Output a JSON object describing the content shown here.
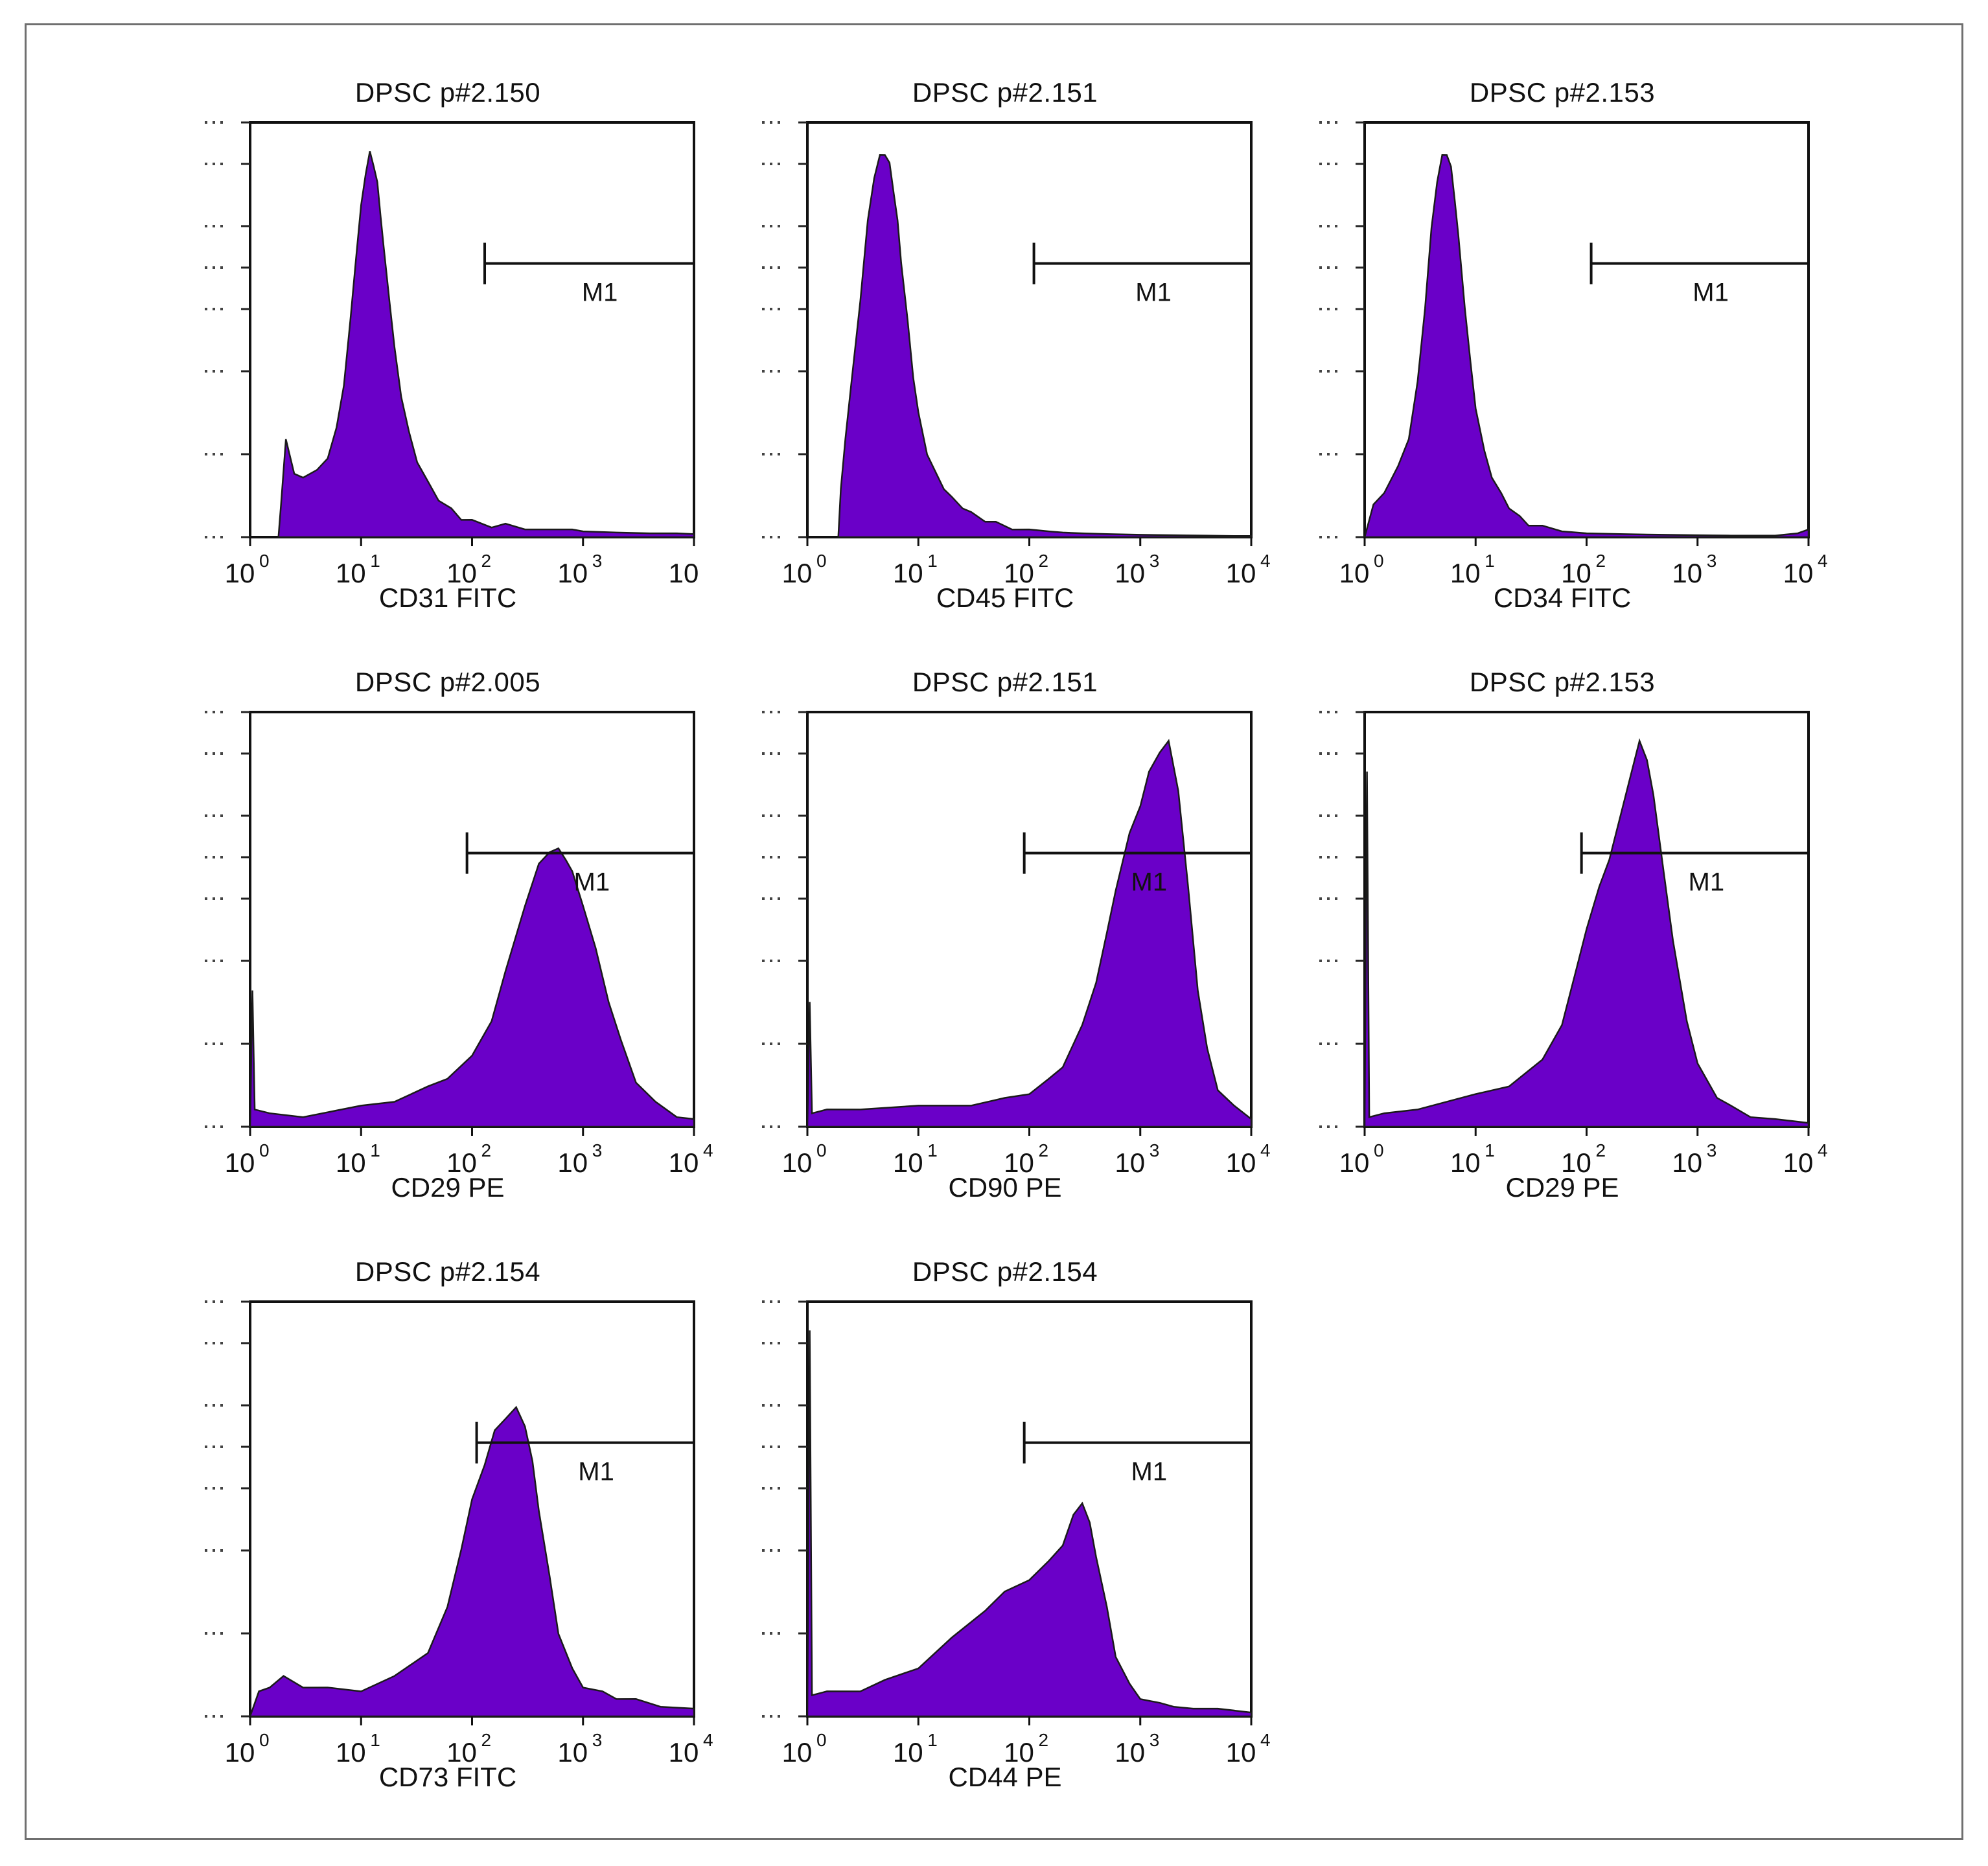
{
  "figure": {
    "fill_color": "#6a00c8",
    "line_color": "#1a1a1a"
  },
  "chart_data": [
    {
      "type": "area",
      "title": "DPSC p#2.150",
      "xlabel": "CD31 FITC",
      "x_scale": "log",
      "xlim": [
        1,
        10000
      ],
      "x_ticks": [
        "10",
        "10",
        "10",
        "10",
        "10"
      ],
      "x_tick_exponents": [
        "0",
        "1",
        "2",
        "3",
        ""
      ],
      "gate": {
        "label": "M1",
        "start": 130,
        "end": 10000
      },
      "y_relative_max": 1.0,
      "series": [
        {
          "x": [
            1.8,
            1.9,
            2.1,
            2.5,
            3,
            4,
            5,
            6,
            7,
            8,
            9,
            10,
            11,
            12,
            13,
            14,
            15,
            16,
            18,
            20,
            23,
            27,
            32,
            40,
            50,
            65,
            80,
            100,
            150,
            200,
            300,
            500,
            800,
            1000,
            2000,
            4000,
            7000,
            10000
          ],
          "y": [
            0.0,
            0.08,
            0.26,
            0.16,
            0.16,
            0.17,
            0.21,
            0.28,
            0.4,
            0.56,
            0.73,
            0.86,
            0.95,
            1.0,
            0.97,
            0.92,
            0.84,
            0.75,
            0.62,
            0.49,
            0.37,
            0.27,
            0.2,
            0.14,
            0.1,
            0.07,
            0.05,
            0.04,
            0.03,
            0.03,
            0.02,
            0.02,
            0.02,
            0.015,
            0.012,
            0.01,
            0.01,
            0.008
          ]
        }
      ]
    },
    {
      "type": "area",
      "title": "DPSC p#2.151",
      "xlabel": "CD45 FITC",
      "x_scale": "log",
      "xlim": [
        1,
        10000
      ],
      "x_ticks": [
        "10",
        "10",
        "10",
        "10",
        "10"
      ],
      "x_tick_exponents": [
        "0",
        "1",
        "2",
        "3",
        "4"
      ],
      "gate": {
        "label": "M1",
        "start": 110,
        "end": 10000
      },
      "y_relative_max": 1.0,
      "series": [
        {
          "x": [
            1.9,
            2.0,
            2.2,
            2.5,
            3,
            3.5,
            4,
            4.5,
            5,
            5.5,
            6,
            6.5,
            7,
            8,
            9,
            10,
            12,
            14,
            17,
            20,
            25,
            30,
            40,
            50,
            70,
            100,
            150,
            200,
            300,
            500,
            1000,
            2000,
            4000,
            7000,
            10000
          ],
          "y": [
            0.0,
            0.12,
            0.26,
            0.4,
            0.62,
            0.82,
            0.94,
            0.99,
            1.0,
            0.97,
            0.9,
            0.82,
            0.72,
            0.56,
            0.42,
            0.32,
            0.22,
            0.17,
            0.13,
            0.1,
            0.08,
            0.06,
            0.045,
            0.035,
            0.025,
            0.02,
            0.015,
            0.012,
            0.01,
            0.008,
            0.006,
            0.005,
            0.004,
            0.003,
            0.003
          ]
        }
      ]
    },
    {
      "type": "area",
      "title": "DPSC p#2.153",
      "xlabel": "CD34 FITC",
      "x_scale": "log",
      "xlim": [
        1,
        10000
      ],
      "x_ticks": [
        "10",
        "10",
        "10",
        "10",
        "10"
      ],
      "x_tick_exponents": [
        "0",
        "1",
        "2",
        "3",
        "4"
      ],
      "gate": {
        "label": "M1",
        "start": 110,
        "end": 10000
      },
      "y_relative_max": 1.0,
      "series": [
        {
          "x": [
            1.0,
            1.2,
            1.5,
            2,
            2.5,
            3,
            3.5,
            4,
            4.5,
            5,
            5.5,
            6,
            6.5,
            7,
            8,
            9,
            10,
            12,
            14,
            17,
            20,
            25,
            30,
            40,
            60,
            100,
            200,
            500,
            1000,
            2000,
            5000,
            8000,
            10000
          ],
          "y": [
            0.0,
            0.08,
            0.12,
            0.18,
            0.26,
            0.4,
            0.6,
            0.8,
            0.93,
            0.99,
            1.0,
            0.96,
            0.88,
            0.78,
            0.6,
            0.45,
            0.34,
            0.22,
            0.16,
            0.11,
            0.08,
            0.05,
            0.035,
            0.025,
            0.015,
            0.01,
            0.008,
            0.006,
            0.005,
            0.004,
            0.004,
            0.01,
            0.02
          ]
        }
      ]
    },
    {
      "type": "area",
      "title": "DPSC p#2.005",
      "xlabel": "CD29 PE",
      "x_scale": "log",
      "xlim": [
        1,
        10000
      ],
      "x_ticks": [
        "10",
        "10",
        "10",
        "10",
        "10"
      ],
      "x_tick_exponents": [
        "0",
        "1",
        "2",
        "3",
        "4"
      ],
      "gate": {
        "label": "M1",
        "start": 90,
        "end": 10000
      },
      "y_relative_max": 1.0,
      "series": [
        {
          "x": [
            1.0,
            1.05,
            1.1,
            1.5,
            3,
            10,
            20,
            40,
            60,
            100,
            150,
            200,
            300,
            400,
            500,
            600,
            700,
            800,
            1000,
            1300,
            1700,
            2200,
            3000,
            4500,
            7000,
            10000
          ],
          "y": [
            0.0,
            0.35,
            0.05,
            0.03,
            0.03,
            0.05,
            0.07,
            0.1,
            0.13,
            0.18,
            0.28,
            0.4,
            0.58,
            0.68,
            0.72,
            0.72,
            0.7,
            0.66,
            0.58,
            0.46,
            0.33,
            0.22,
            0.12,
            0.06,
            0.03,
            0.02
          ]
        }
      ]
    },
    {
      "type": "area",
      "title": "DPSC p#2.151",
      "xlabel": "CD90 PE",
      "x_scale": "log",
      "xlim": [
        1,
        10000
      ],
      "x_ticks": [
        "10",
        "10",
        "10",
        "10",
        "10"
      ],
      "x_tick_exponents": [
        "0",
        "1",
        "2",
        "3",
        "4"
      ],
      "gate": {
        "label": "M1",
        "start": 90,
        "end": 10000
      },
      "y_relative_max": 1.0,
      "series": [
        {
          "x": [
            1.0,
            1.05,
            1.1,
            1.5,
            3,
            10,
            30,
            60,
            100,
            150,
            200,
            300,
            400,
            500,
            600,
            800,
            1000,
            1200,
            1500,
            1800,
            2200,
            2700,
            3300,
            4000,
            5000,
            7000,
            10000
          ],
          "y": [
            0.0,
            0.32,
            0.04,
            0.04,
            0.05,
            0.05,
            0.06,
            0.07,
            0.09,
            0.12,
            0.16,
            0.26,
            0.38,
            0.5,
            0.62,
            0.76,
            0.84,
            0.92,
            0.98,
            1.0,
            0.88,
            0.62,
            0.36,
            0.2,
            0.1,
            0.05,
            0.02
          ]
        }
      ]
    },
    {
      "type": "area",
      "title": "DPSC p#2.153",
      "xlabel": "CD29 PE",
      "x_scale": "log",
      "xlim": [
        1,
        10000
      ],
      "x_ticks": [
        "10",
        "10",
        "10",
        "10",
        "10"
      ],
      "x_tick_exponents": [
        "0",
        "1",
        "2",
        "3",
        "4"
      ],
      "gate": {
        "label": "M1",
        "start": 90,
        "end": 10000
      },
      "y_relative_max": 1.0,
      "series": [
        {
          "x": [
            1.0,
            1.05,
            1.1,
            1.5,
            3,
            10,
            20,
            40,
            60,
            80,
            100,
            130,
            160,
            200,
            250,
            300,
            350,
            400,
            500,
            600,
            800,
            1000,
            1500,
            2000,
            3000,
            5000,
            10000
          ],
          "y": [
            0.0,
            0.92,
            0.03,
            0.03,
            0.05,
            0.08,
            0.11,
            0.17,
            0.27,
            0.4,
            0.52,
            0.62,
            0.7,
            0.8,
            0.92,
            1.0,
            0.96,
            0.86,
            0.66,
            0.48,
            0.28,
            0.16,
            0.08,
            0.05,
            0.03,
            0.02,
            0.01
          ]
        }
      ]
    },
    {
      "type": "area",
      "title": "DPSC p#2.154",
      "xlabel": "CD73 FITC",
      "x_scale": "log",
      "xlim": [
        1,
        10000
      ],
      "x_ticks": [
        "10",
        "10",
        "10",
        "10",
        "10"
      ],
      "x_tick_exponents": [
        "0",
        "1",
        "2",
        "3",
        "4"
      ],
      "gate": {
        "label": "M1",
        "start": 110,
        "end": 10000
      },
      "y_relative_max": 1.0,
      "series": [
        {
          "x": [
            1.0,
            1.2,
            1.5,
            2,
            3,
            5,
            10,
            20,
            40,
            60,
            80,
            100,
            130,
            160,
            200,
            250,
            300,
            350,
            400,
            500,
            600,
            800,
            1000,
            1500,
            2000,
            3000,
            5000,
            10000
          ],
          "y": [
            0.0,
            0.06,
            0.08,
            0.1,
            0.08,
            0.07,
            0.07,
            0.1,
            0.17,
            0.28,
            0.44,
            0.56,
            0.66,
            0.74,
            0.78,
            0.8,
            0.76,
            0.66,
            0.54,
            0.36,
            0.22,
            0.12,
            0.08,
            0.06,
            0.05,
            0.04,
            0.03,
            0.02
          ]
        }
      ]
    },
    {
      "type": "area",
      "title": "DPSC p#2.154",
      "xlabel": "CD44 PE",
      "x_scale": "log",
      "xlim": [
        1,
        10000
      ],
      "x_ticks": [
        "10",
        "10",
        "10",
        "10",
        "10"
      ],
      "x_tick_exponents": [
        "0",
        "1",
        "2",
        "3",
        "4"
      ],
      "gate": {
        "label": "M1",
        "start": 90,
        "end": 10000
      },
      "y_relative_max": 1.0,
      "series": [
        {
          "x": [
            1.0,
            1.05,
            1.1,
            1.5,
            3,
            5,
            10,
            20,
            40,
            60,
            100,
            150,
            200,
            250,
            300,
            350,
            400,
            500,
            600,
            800,
            1000,
            1500,
            2000,
            3000,
            5000,
            10000
          ],
          "y": [
            0.0,
            1.0,
            0.06,
            0.06,
            0.07,
            0.09,
            0.13,
            0.2,
            0.28,
            0.32,
            0.36,
            0.4,
            0.45,
            0.52,
            0.56,
            0.5,
            0.42,
            0.28,
            0.16,
            0.08,
            0.05,
            0.03,
            0.03,
            0.02,
            0.02,
            0.01
          ]
        }
      ]
    }
  ]
}
